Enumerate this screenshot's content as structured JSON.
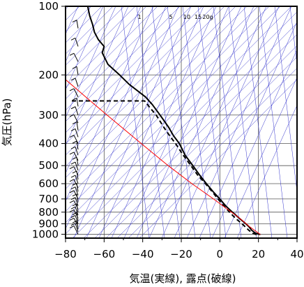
{
  "chart_data": {
    "type": "line",
    "title": "",
    "xlabel": "気温(実線), 露点(破線)",
    "ylabel": "気圧(hPa)",
    "xlim": [
      -80,
      40
    ],
    "ylim": [
      1040,
      100
    ],
    "y_scale": "log",
    "x_ticks": [
      "−80",
      "−60",
      "−40",
      "−20",
      "0",
      "20",
      "40"
    ],
    "x_tick_values": [
      -80,
      -60,
      -40,
      -20,
      0,
      20,
      40
    ],
    "y_ticks": [
      "100",
      "200",
      "300",
      "400",
      "500",
      "600",
      "700",
      "800",
      "900",
      "1000"
    ],
    "y_tick_values": [
      100,
      200,
      300,
      400,
      500,
      600,
      700,
      800,
      900,
      1000
    ],
    "mixing_ratio_labels": [
      "1",
      "5",
      "10",
      "15",
      "20g"
    ],
    "mixing_ratio_values": [
      1,
      5,
      10,
      15,
      20
    ],
    "series": [
      {
        "style": "solid",
        "color": "#000000",
        "pressure": [
          1003,
          990,
          960,
          925,
          900,
          850,
          800,
          750,
          700,
          650,
          600,
          550,
          500,
          450,
          400,
          370,
          340,
          300,
          270,
          250,
          220,
          200,
          180,
          160,
          150,
          140,
          130,
          120,
          110,
          100
        ],
        "values": [
          21,
          18.5,
          16.5,
          15,
          13.5,
          10,
          6.5,
          3,
          0,
          -3.5,
          -7,
          -10.5,
          -14,
          -18,
          -21,
          -24,
          -26.5,
          -31,
          -35,
          -38.5,
          -47,
          -52,
          -58,
          -61,
          -60,
          -63,
          -65,
          -66,
          -67.5,
          -68.5
        ]
      },
      {
        "style": "dashed",
        "color": "#000000",
        "pressure": [
          1003,
          990,
          960,
          925,
          900,
          850,
          800,
          750,
          700,
          650,
          600,
          550,
          500,
          450,
          400,
          370,
          340,
          300,
          280,
          260,
          260
        ],
        "values": [
          19,
          17,
          15,
          13,
          11.5,
          8,
          5,
          2,
          -1,
          -4,
          -7.5,
          -11.5,
          -15,
          -19,
          -23,
          -26,
          -29,
          -33,
          -36,
          -39,
          -78
        ]
      },
      {
        "style": "solid",
        "color": "#ff0000",
        "pressure": [
          1003,
          925,
          850,
          700,
          600,
          500,
          400,
          300,
          250,
          200,
          150
        ],
        "values": [
          21,
          15.3,
          10.2,
          -3.3,
          -14.5,
          -26.8,
          -40.8,
          -58.5,
          -69.5,
          -82.8,
          -99.3
        ]
      }
    ],
    "wind_barbs_pressure": [
      1000,
      975,
      950,
      925,
      900,
      875,
      850,
      825,
      800,
      775,
      750,
      725,
      700,
      675,
      650,
      625,
      600,
      575,
      550,
      525,
      500,
      475,
      450,
      425,
      400,
      375,
      350,
      325,
      300,
      275,
      250,
      225,
      200,
      175,
      150,
      125,
      100
    ]
  }
}
